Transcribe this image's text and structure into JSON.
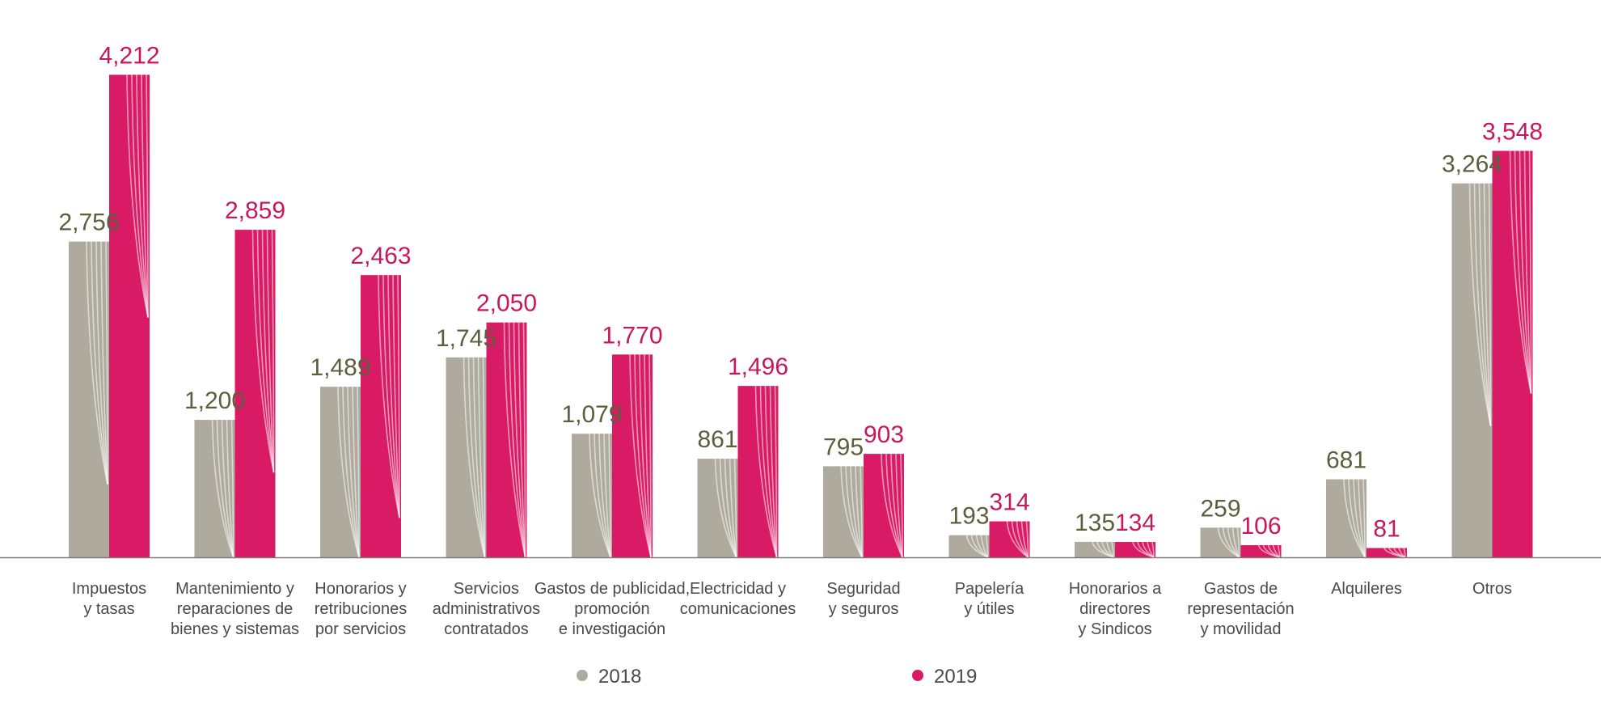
{
  "chart_data": {
    "type": "bar",
    "title": "",
    "xlabel": "",
    "ylabel": "",
    "ylim": [
      0,
      4300
    ],
    "grid": false,
    "legend_position": "bottom-center",
    "categories": [
      [
        "Impuestos",
        "y tasas"
      ],
      [
        "Mantenimiento y",
        "reparaciones de",
        "bienes y sistemas"
      ],
      [
        "Honorarios y",
        "retribuciones",
        "por servicios"
      ],
      [
        "Servicios",
        "administrativos",
        "contratados"
      ],
      [
        "Gastos de publicidad,",
        "promoción",
        "e investigación"
      ],
      [
        "Electricidad y",
        "comunicaciones"
      ],
      [
        "Seguridad",
        "y seguros"
      ],
      [
        "Papelería",
        "y útiles"
      ],
      [
        "Honorarios a",
        "directores",
        "y Sindicos"
      ],
      [
        "Gastos de",
        "representación",
        "y movilidad"
      ],
      [
        "Alquileres"
      ],
      [
        "Otros"
      ]
    ],
    "series": [
      {
        "name": "2018",
        "color": "#aeab9e",
        "label_color": "#5a5f3c",
        "values": [
          2756,
          1200,
          1489,
          1745,
          1079,
          861,
          795,
          193,
          135,
          259,
          681,
          3264
        ],
        "labels": [
          "2,756",
          "1,200",
          "1,489",
          "1,745",
          "1,079",
          "861",
          "795",
          "193",
          "135",
          "259",
          "681",
          "3,264"
        ]
      },
      {
        "name": "2019",
        "color": "#d81b64",
        "label_color": "#c8175c",
        "values": [
          4212,
          2859,
          2463,
          2050,
          1770,
          1496,
          903,
          314,
          134,
          106,
          81,
          3548
        ],
        "labels": [
          "4,212",
          "2,859",
          "2,463",
          "2,050",
          "1,770",
          "1,496",
          "903",
          "314",
          "134",
          "106",
          "81",
          "3,548"
        ]
      }
    ]
  }
}
